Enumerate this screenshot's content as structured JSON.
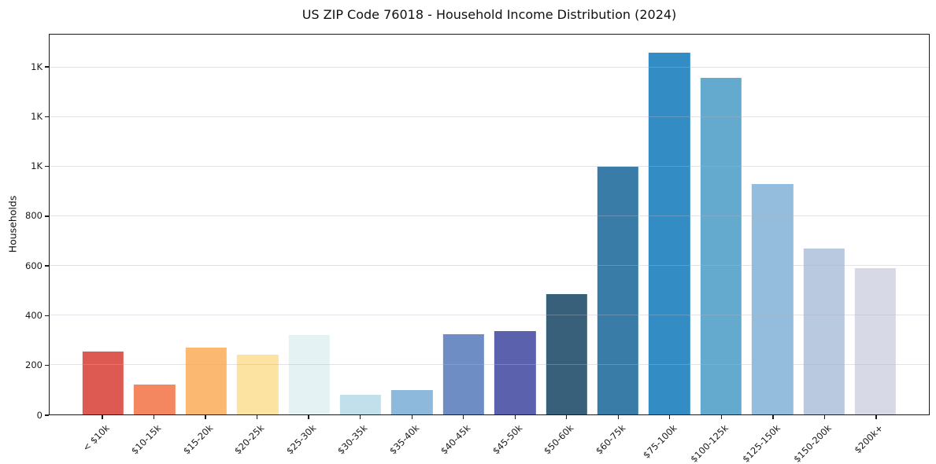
{
  "chart_data": {
    "type": "bar",
    "title": "US ZIP Code 76018 - Household Income Distribution (2024)",
    "xlabel": "",
    "ylabel": "Households",
    "categories": [
      "< $10k",
      "$10-15k",
      "$15-20k",
      "$20-25k",
      "$25-30k",
      "$30-35k",
      "$35-40k",
      "$40-45k",
      "$45-50k",
      "$50-60k",
      "$60-75k",
      "$75-100k",
      "$100-125k",
      "$125-150k",
      "$150-200k",
      "$200k+"
    ],
    "values": [
      255,
      120,
      270,
      240,
      320,
      80,
      100,
      325,
      335,
      485,
      1000,
      1460,
      1360,
      930,
      670,
      590
    ],
    "bar_colors": [
      "#dd5a52",
      "#f4875f",
      "#fbb871",
      "#fde3a2",
      "#e5f2f3",
      "#c2dfec",
      "#8db9dc",
      "#6d8dc4",
      "#5c61ad",
      "#38607a",
      "#3a7ca8",
      "#338cc4",
      "#64aace",
      "#94bcdc",
      "#b8c9e0",
      "#d7d9e6"
    ],
    "ylim": [
      0,
      1533
    ],
    "yticks": [
      {
        "value": 0,
        "label": "0"
      },
      {
        "value": 200,
        "label": "200"
      },
      {
        "value": 400,
        "label": "400"
      },
      {
        "value": 600,
        "label": "600"
      },
      {
        "value": 800,
        "label": "800"
      },
      {
        "value": 1000,
        "label": "1K"
      },
      {
        "value": 1200,
        "label": "1K"
      },
      {
        "value": 1400,
        "label": "1K"
      }
    ],
    "grid": "horizontal-only",
    "legend": "none",
    "colors": {
      "spine": "#1a1a1a",
      "grid": "rgba(178,178,194,0.38)",
      "background": "#ffffff",
      "text": "#111111"
    }
  }
}
